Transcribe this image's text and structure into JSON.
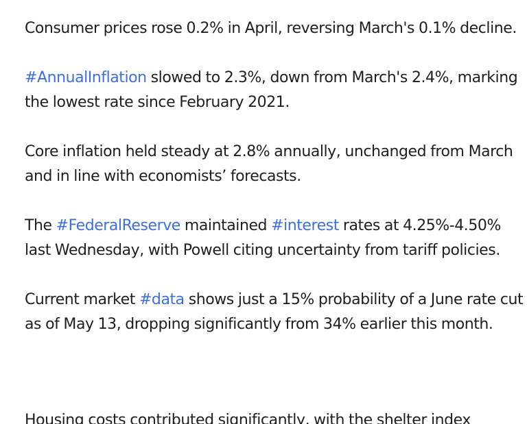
{
  "post": {
    "p1": {
      "text": "Consumer prices rose 0.2% in April, reversing March's 0.1% decline."
    },
    "p2": {
      "tag": "#AnnualInflation",
      "text": " slowed to 2.3%, down from March's 2.4%, marking the lowest rate since February 2021."
    },
    "p3": {
      "text": "Core inflation held steady at 2.8% annually, unchanged from March and in line with economists’ forecasts."
    },
    "p4": {
      "pre": "The ",
      "tag1": "#FederalReserve",
      "mid": " maintained ",
      "tag2": "#interest",
      "post": " rates at 4.25%-4.50% last Wednesday, with Powell citing uncertainty from tariff policies."
    },
    "p5": {
      "pre": "Current market ",
      "tag": "#data",
      "post": " shows just a 15% probability of a June rate cut as of May 13, dropping significantly from 34% earlier this month."
    },
    "p6": {
      "text": "Housing costs contributed significantly, with the shelter index"
    }
  },
  "colors": {
    "text": "#1e1e1e",
    "hashtag": "#3b6fe0",
    "background": "#ffffff"
  }
}
